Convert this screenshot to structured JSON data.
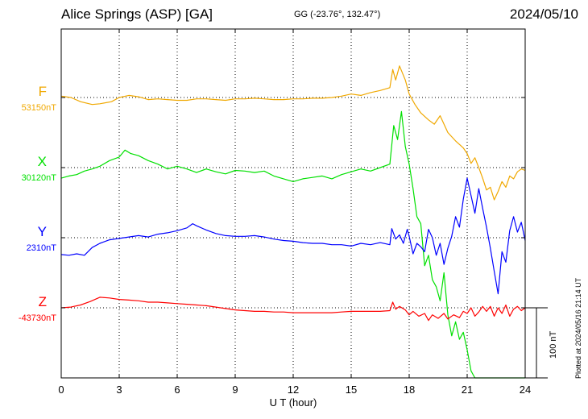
{
  "header": {
    "station": "Alice Springs (ASP)  [GA]",
    "coords": "GG (-23.76°, 132.47°)",
    "date": "2024/05/10"
  },
  "footer": {
    "plotted": "Plotted at 2024/05/16 21:14 UT",
    "scale_label": "100 nT"
  },
  "colors": {
    "F": "#f0a800",
    "X": "#00e000",
    "Y": "#0000ff",
    "Z": "#ff0000"
  },
  "chart_data": {
    "type": "line",
    "xlabel": "U T (hour)",
    "xlim": [
      0,
      24
    ],
    "xticks": [
      0,
      3,
      6,
      9,
      12,
      15,
      18,
      21,
      24
    ],
    "grid": true,
    "scale_bar_nT": 100,
    "series": [
      {
        "name": "F",
        "baseline_label": "53150nT",
        "baseline_nT": 53150,
        "points": [
          [
            0,
            53152
          ],
          [
            0.5,
            53150
          ],
          [
            1,
            53144
          ],
          [
            1.6,
            53140
          ],
          [
            2,
            53141
          ],
          [
            2.6,
            53144
          ],
          [
            3,
            53150
          ],
          [
            3.5,
            53153
          ],
          [
            4,
            53151
          ],
          [
            4.5,
            53147
          ],
          [
            5,
            53148
          ],
          [
            5.5,
            53147
          ],
          [
            6,
            53146
          ],
          [
            6.5,
            53146
          ],
          [
            7,
            53148
          ],
          [
            7.5,
            53148
          ],
          [
            8,
            53147
          ],
          [
            8.5,
            53146
          ],
          [
            9,
            53148
          ],
          [
            9.5,
            53148
          ],
          [
            10,
            53149
          ],
          [
            10.5,
            53148
          ],
          [
            11,
            53147
          ],
          [
            11.5,
            53147
          ],
          [
            12,
            53148
          ],
          [
            12.5,
            53148
          ],
          [
            13,
            53149
          ],
          [
            13.5,
            53149
          ],
          [
            14,
            53150
          ],
          [
            14.5,
            53152
          ],
          [
            15,
            53155
          ],
          [
            15.5,
            53153
          ],
          [
            16,
            53157
          ],
          [
            16.5,
            53160
          ],
          [
            17,
            53164
          ],
          [
            17.15,
            53190
          ],
          [
            17.3,
            53175
          ],
          [
            17.5,
            53195
          ],
          [
            17.8,
            53175
          ],
          [
            18,
            53155
          ],
          [
            18.3,
            53140
          ],
          [
            18.6,
            53128
          ],
          [
            19,
            53118
          ],
          [
            19.3,
            53112
          ],
          [
            19.6,
            53124
          ],
          [
            20,
            53100
          ],
          [
            20.4,
            53088
          ],
          [
            20.8,
            53078
          ],
          [
            21,
            53070
          ],
          [
            21.2,
            53056
          ],
          [
            21.4,
            53064
          ],
          [
            21.6,
            53050
          ],
          [
            21.8,
            53035
          ],
          [
            22,
            53018
          ],
          [
            22.2,
            53022
          ],
          [
            22.4,
            53004
          ],
          [
            22.6,
            53016
          ],
          [
            22.8,
            53030
          ],
          [
            23,
            53022
          ],
          [
            23.2,
            53038
          ],
          [
            23.4,
            53034
          ],
          [
            23.6,
            53044
          ],
          [
            23.8,
            53048
          ],
          [
            24,
            53046
          ]
        ]
      },
      {
        "name": "X",
        "baseline_label": "30120nT",
        "baseline_nT": 30120,
        "points": [
          [
            0,
            30105
          ],
          [
            0.4,
            30108
          ],
          [
            0.8,
            30110
          ],
          [
            1.2,
            30115
          ],
          [
            1.6,
            30118
          ],
          [
            2,
            30122
          ],
          [
            2.5,
            30130
          ],
          [
            3,
            30135
          ],
          [
            3.3,
            30145
          ],
          [
            3.6,
            30140
          ],
          [
            4,
            30137
          ],
          [
            4.5,
            30130
          ],
          [
            5,
            30125
          ],
          [
            5.5,
            30118
          ],
          [
            6,
            30122
          ],
          [
            6.5,
            30118
          ],
          [
            7,
            30113
          ],
          [
            7.5,
            30118
          ],
          [
            8,
            30114
          ],
          [
            8.5,
            30111
          ],
          [
            9,
            30116
          ],
          [
            9.5,
            30115
          ],
          [
            10,
            30113
          ],
          [
            10.5,
            30115
          ],
          [
            11,
            30108
          ],
          [
            11.5,
            30104
          ],
          [
            12,
            30100
          ],
          [
            12.5,
            30104
          ],
          [
            13,
            30106
          ],
          [
            13.5,
            30108
          ],
          [
            14,
            30104
          ],
          [
            14.5,
            30110
          ],
          [
            15,
            30114
          ],
          [
            15.5,
            30118
          ],
          [
            16,
            30115
          ],
          [
            16.5,
            30120
          ],
          [
            17,
            30125
          ],
          [
            17.2,
            30180
          ],
          [
            17.4,
            30160
          ],
          [
            17.6,
            30200
          ],
          [
            17.8,
            30150
          ],
          [
            18,
            30125
          ],
          [
            18.2,
            30090
          ],
          [
            18.4,
            30050
          ],
          [
            18.6,
            30040
          ],
          [
            18.8,
            29980
          ],
          [
            19,
            29995
          ],
          [
            19.2,
            29960
          ],
          [
            19.4,
            29950
          ],
          [
            19.6,
            29930
          ],
          [
            19.8,
            29970
          ],
          [
            20,
            29910
          ],
          [
            20.2,
            29880
          ],
          [
            20.4,
            29900
          ],
          [
            20.6,
            29875
          ],
          [
            20.8,
            29885
          ],
          [
            21,
            29860
          ],
          [
            21.2,
            29830
          ],
          [
            21.4,
            29810
          ],
          [
            21.6,
            29790
          ],
          [
            21.8,
            29780
          ],
          [
            22,
            29760
          ],
          [
            22.2,
            29770
          ],
          [
            22.4,
            29740
          ],
          [
            22.6,
            29760
          ],
          [
            22.8,
            29780
          ],
          [
            23,
            29790
          ],
          [
            23.2,
            29800
          ],
          [
            23.4,
            29790
          ],
          [
            23.6,
            29805
          ],
          [
            23.8,
            29800
          ],
          [
            24,
            29810
          ]
        ]
      },
      {
        "name": "Y",
        "baseline_label": "2310nT",
        "baseline_nT": 2310,
        "points": [
          [
            0,
            2286
          ],
          [
            0.4,
            2285
          ],
          [
            0.8,
            2287
          ],
          [
            1.2,
            2285
          ],
          [
            1.6,
            2296
          ],
          [
            2,
            2302
          ],
          [
            2.5,
            2307
          ],
          [
            3,
            2309
          ],
          [
            3.5,
            2311
          ],
          [
            4,
            2313
          ],
          [
            4.5,
            2311
          ],
          [
            5,
            2315
          ],
          [
            5.5,
            2317
          ],
          [
            6,
            2320
          ],
          [
            6.5,
            2324
          ],
          [
            6.8,
            2330
          ],
          [
            7,
            2327
          ],
          [
            7.5,
            2321
          ],
          [
            8,
            2316
          ],
          [
            8.5,
            2313
          ],
          [
            9,
            2312
          ],
          [
            9.5,
            2312
          ],
          [
            10,
            2313
          ],
          [
            10.5,
            2311
          ],
          [
            11,
            2308
          ],
          [
            11.5,
            2306
          ],
          [
            12,
            2305
          ],
          [
            12.5,
            2303
          ],
          [
            13,
            2302
          ],
          [
            13.5,
            2302
          ],
          [
            14,
            2300
          ],
          [
            14.5,
            2300
          ],
          [
            15,
            2298
          ],
          [
            15.5,
            2302
          ],
          [
            16,
            2300
          ],
          [
            16.5,
            2303
          ],
          [
            17,
            2300
          ],
          [
            17.1,
            2323
          ],
          [
            17.3,
            2308
          ],
          [
            17.5,
            2314
          ],
          [
            17.7,
            2302
          ],
          [
            17.9,
            2322
          ],
          [
            18,
            2312
          ],
          [
            18.2,
            2287
          ],
          [
            18.4,
            2302
          ],
          [
            18.6,
            2297
          ],
          [
            18.8,
            2290
          ],
          [
            19,
            2322
          ],
          [
            19.2,
            2310
          ],
          [
            19.4,
            2285
          ],
          [
            19.6,
            2302
          ],
          [
            19.8,
            2272
          ],
          [
            20,
            2295
          ],
          [
            20.2,
            2312
          ],
          [
            20.4,
            2340
          ],
          [
            20.6,
            2325
          ],
          [
            20.8,
            2365
          ],
          [
            21,
            2395
          ],
          [
            21.2,
            2370
          ],
          [
            21.4,
            2345
          ],
          [
            21.6,
            2380
          ],
          [
            21.8,
            2352
          ],
          [
            22,
            2325
          ],
          [
            22.2,
            2295
          ],
          [
            22.4,
            2262
          ],
          [
            22.6,
            2230
          ],
          [
            22.8,
            2290
          ],
          [
            23,
            2275
          ],
          [
            23.2,
            2320
          ],
          [
            23.4,
            2340
          ],
          [
            23.6,
            2318
          ],
          [
            23.8,
            2332
          ],
          [
            24,
            2306
          ]
        ]
      },
      {
        "name": "Z",
        "baseline_label": "-43730nT",
        "baseline_nT": -43730,
        "points": [
          [
            0,
            -43730
          ],
          [
            0.5,
            -43729
          ],
          [
            1,
            -43726
          ],
          [
            1.5,
            -43721
          ],
          [
            2,
            -43715
          ],
          [
            2.5,
            -43716
          ],
          [
            3,
            -43718
          ],
          [
            3.5,
            -43719
          ],
          [
            4,
            -43720
          ],
          [
            4.5,
            -43722
          ],
          [
            5,
            -43722
          ],
          [
            5.5,
            -43723
          ],
          [
            6,
            -43724
          ],
          [
            6.5,
            -43725
          ],
          [
            7,
            -43726
          ],
          [
            7.5,
            -43727
          ],
          [
            8,
            -43729
          ],
          [
            8.5,
            -43731
          ],
          [
            9,
            -43733
          ],
          [
            9.5,
            -43734
          ],
          [
            10,
            -43735
          ],
          [
            10.5,
            -43735
          ],
          [
            11,
            -43736
          ],
          [
            11.5,
            -43736
          ],
          [
            12,
            -43737
          ],
          [
            12.5,
            -43737
          ],
          [
            13,
            -43737
          ],
          [
            13.5,
            -43737
          ],
          [
            14,
            -43737
          ],
          [
            14.5,
            -43736
          ],
          [
            15,
            -43735
          ],
          [
            15.5,
            -43735
          ],
          [
            16,
            -43735
          ],
          [
            16.5,
            -43735
          ],
          [
            17,
            -43734
          ],
          [
            17.15,
            -43722
          ],
          [
            17.3,
            -43732
          ],
          [
            17.5,
            -43728
          ],
          [
            17.8,
            -43733
          ],
          [
            18,
            -43740
          ],
          [
            18.2,
            -43735
          ],
          [
            18.5,
            -43742
          ],
          [
            18.8,
            -43738
          ],
          [
            19,
            -43748
          ],
          [
            19.2,
            -43740
          ],
          [
            19.5,
            -43745
          ],
          [
            19.8,
            -43738
          ],
          [
            20,
            -43746
          ],
          [
            20.3,
            -43740
          ],
          [
            20.6,
            -43744
          ],
          [
            20.8,
            -43735
          ],
          [
            21,
            -43738
          ],
          [
            21.2,
            -43730
          ],
          [
            21.4,
            -43742
          ],
          [
            21.6,
            -43736
          ],
          [
            21.8,
            -43728
          ],
          [
            22,
            -43735
          ],
          [
            22.2,
            -43728
          ],
          [
            22.4,
            -43742
          ],
          [
            22.6,
            -43730
          ],
          [
            22.8,
            -43738
          ],
          [
            23,
            -43726
          ],
          [
            23.2,
            -43742
          ],
          [
            23.4,
            -43732
          ],
          [
            23.6,
            -43728
          ],
          [
            23.8,
            -43734
          ],
          [
            24,
            -43730
          ]
        ]
      }
    ]
  }
}
